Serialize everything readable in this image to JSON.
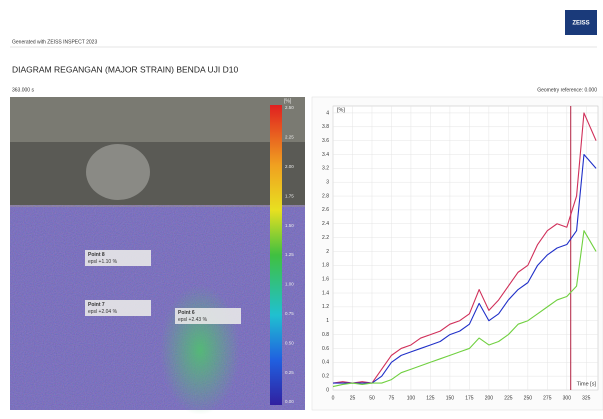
{
  "header": {
    "generated": "Generated with ZEISS INSPECT 2023",
    "logo": "ZEISS"
  },
  "title": "DIAGRAM REGANGAN (MAJOR STRAIN) BENDA UJI D10",
  "time_stamp": "363.000 s",
  "geometry_reference": "Geometry reference: 0.000",
  "image": {
    "colorbar_unit": "[%]",
    "colorbar_ticks": [
      "2.50",
      "2.25",
      "2.00",
      "1.75",
      "1.50",
      "1.25",
      "1.00",
      "0.75",
      "0.50",
      "0.25",
      "0.00"
    ],
    "points": [
      {
        "label": "Point 8",
        "value": "epsl +1.10 %"
      },
      {
        "label": "Point 7",
        "value": "epsl +2.04 %"
      },
      {
        "label": "Point 6",
        "value": "epsl +2.43 %"
      }
    ]
  },
  "chart_data": {
    "type": "line",
    "y_label": "[%]",
    "x_label": "Time [s]",
    "x": [
      0,
      12.5,
      25,
      37.5,
      50,
      62.5,
      75,
      87.5,
      100,
      112.5,
      125,
      137.5,
      150,
      162.5,
      175,
      187.5,
      200,
      212.5,
      225,
      237.5,
      250,
      262.5,
      275,
      287.5,
      300,
      312.5,
      322,
      337.5
    ],
    "series": [
      {
        "color": "#d0305a",
        "values": [
          0.1,
          0.12,
          0.1,
          0.12,
          0.1,
          0.3,
          0.5,
          0.6,
          0.65,
          0.75,
          0.8,
          0.85,
          0.95,
          1.0,
          1.1,
          1.45,
          1.15,
          1.3,
          1.5,
          1.7,
          1.8,
          2.1,
          2.3,
          2.4,
          2.35,
          2.8,
          4.0,
          3.6
        ]
      },
      {
        "color": "#2030c8",
        "values": [
          0.1,
          0.1,
          0.1,
          0.1,
          0.1,
          0.2,
          0.4,
          0.5,
          0.55,
          0.6,
          0.65,
          0.7,
          0.8,
          0.85,
          0.95,
          1.25,
          1.0,
          1.1,
          1.3,
          1.45,
          1.55,
          1.8,
          1.95,
          2.05,
          2.1,
          2.3,
          3.4,
          3.2
        ]
      },
      {
        "color": "#70d040",
        "values": [
          0.05,
          0.08,
          0.1,
          0.08,
          0.1,
          0.1,
          0.15,
          0.25,
          0.3,
          0.35,
          0.4,
          0.45,
          0.5,
          0.55,
          0.6,
          0.75,
          0.65,
          0.7,
          0.8,
          0.95,
          1.0,
          1.1,
          1.2,
          1.3,
          1.35,
          1.5,
          2.3,
          2.0
        ]
      }
    ],
    "marker_x": 305,
    "marker_color": "#b02040",
    "xlim": [
      0,
      340
    ],
    "xticks": [
      0,
      25,
      50,
      75,
      100,
      125,
      150,
      175,
      200,
      225,
      250,
      275,
      300,
      325
    ],
    "ylim": [
      0,
      4.1
    ],
    "yticks": [
      0,
      0.2,
      0.4,
      0.6,
      0.8,
      1,
      1.2,
      1.4,
      1.6,
      1.8,
      2,
      2.2,
      2.4,
      2.6,
      2.8,
      3,
      3.2,
      3.4,
      3.6,
      3.8,
      4
    ],
    "grid": true
  }
}
